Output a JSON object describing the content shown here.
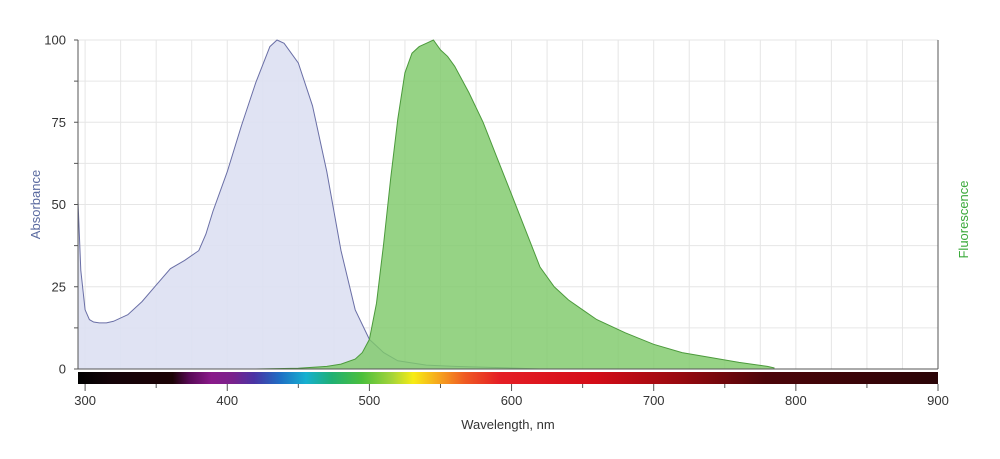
{
  "chart_data": {
    "type": "area",
    "xlabel": "Wavelength, nm",
    "ylabel": "Absorbance",
    "ylabel_right": "Fluorescence",
    "xlim": [
      295,
      900
    ],
    "ylim": [
      0,
      100
    ],
    "x_ticks": [
      300,
      400,
      500,
      600,
      700,
      800,
      900
    ],
    "y_ticks": [
      0,
      25,
      50,
      75,
      100
    ],
    "grid": true,
    "spectrum_bar": true,
    "colors": {
      "absorbance_fill": "#dde0f2",
      "absorbance_line": "#6a6fa6",
      "fluorescence_fill": "#7fc96a",
      "fluorescence_line": "#4c9a3c",
      "ylabel": "#5a6aa0",
      "ylabel_right": "#3aa93a",
      "grid": "#e6e6e6",
      "axis": "#555555"
    },
    "series": [
      {
        "key": "absorbance",
        "x": [
          295,
          297,
          300,
          303,
          306,
          310,
          315,
          320,
          330,
          340,
          350,
          360,
          370,
          380,
          385,
          390,
          400,
          410,
          420,
          430,
          435,
          440,
          450,
          460,
          470,
          480,
          490,
          500,
          510,
          520,
          540,
          560,
          600,
          620
        ],
        "values": [
          51,
          30,
          18,
          15,
          14.3,
          14,
          14,
          14.5,
          16.5,
          20.5,
          25.5,
          30.5,
          33,
          36,
          41,
          48,
          60,
          74,
          87,
          98,
          100,
          99,
          93,
          80,
          60,
          36,
          18,
          9,
          5,
          2.5,
          1.2,
          0.8,
          0.3,
          0
        ]
      },
      {
        "key": "fluorescence",
        "x": [
          420,
          450,
          470,
          480,
          490,
          495,
          500,
          505,
          510,
          515,
          520,
          525,
          530,
          535,
          540,
          545,
          550,
          555,
          560,
          570,
          580,
          590,
          600,
          610,
          620,
          630,
          640,
          650,
          660,
          680,
          700,
          720,
          740,
          760,
          780,
          785
        ],
        "values": [
          0,
          0.2,
          0.8,
          1.5,
          3,
          5,
          9,
          20,
          38,
          58,
          76,
          90,
          96,
          98,
          99,
          100,
          97,
          95,
          92,
          84,
          75,
          64,
          53,
          42,
          31,
          25,
          21,
          18,
          15,
          11,
          7.5,
          5,
          3.5,
          2,
          0.8,
          0.3
        ]
      }
    ]
  }
}
